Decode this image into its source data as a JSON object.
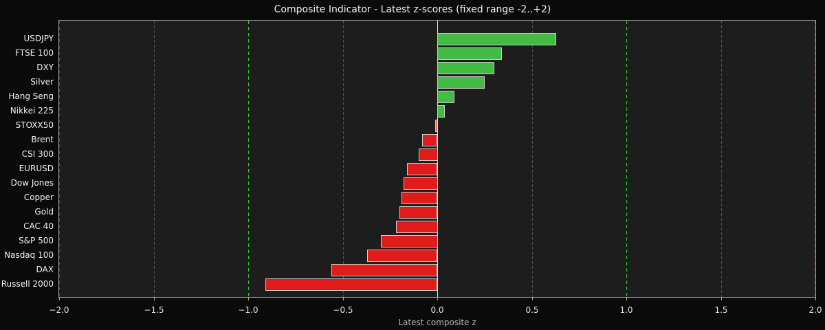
{
  "chart_data": {
    "type": "bar",
    "orientation": "horizontal",
    "title": "Composite Indicator - Latest z-scores (fixed range -2..+2)",
    "xlabel": "Latest composite z",
    "xlim": [
      -2.0,
      2.0
    ],
    "grid": true,
    "legend": false,
    "categories": [
      "USDJPY",
      "FTSE 100",
      "DXY",
      "Silver",
      "Hang Seng",
      "Nikkei 225",
      "STOXX50",
      "Brent",
      "CSI 300",
      "EURUSD",
      "Dow Jones",
      "Copper",
      "Gold",
      "CAC 40",
      "S&P 500",
      "Nasdaq 100",
      "DAX",
      "Russell 2000"
    ],
    "values": [
      0.63,
      0.34,
      0.3,
      0.25,
      0.09,
      0.04,
      -0.01,
      -0.08,
      -0.1,
      -0.16,
      -0.18,
      -0.19,
      -0.2,
      -0.22,
      -0.3,
      -0.37,
      -0.56,
      -0.91
    ],
    "xticks": [
      {
        "v": -2.0,
        "label": "−2.0"
      },
      {
        "v": -1.5,
        "label": "−1.5"
      },
      {
        "v": -1.0,
        "label": "−1.0"
      },
      {
        "v": -0.5,
        "label": "−0.5"
      },
      {
        "v": 0.0,
        "label": "0.0"
      },
      {
        "v": 0.5,
        "label": "0.5"
      },
      {
        "v": 1.0,
        "label": "1.0"
      },
      {
        "v": 1.5,
        "label": "1.5"
      },
      {
        "v": 2.0,
        "label": "2.0"
      }
    ],
    "gridlines_dashed_grey": [
      -1.5,
      -0.5,
      0.5,
      1.5
    ],
    "reference_lines_dashed_green": [
      -1.0,
      1.0
    ],
    "reference_lines_dashed_red": [
      -2.0,
      2.0
    ],
    "zero_line": 0.0,
    "colors": {
      "positive_bar": "#44bb44",
      "negative_bar": "#e11a1a",
      "bar_edge": "#cccccc",
      "grid_grey": "#555555",
      "ref_green": "#26cc26",
      "ref_red": "#a03030",
      "zero_line": "#e8e8e8",
      "figure_background": "#0a0a0a",
      "plot_background": "#1d1d1d",
      "spine": "#9a9a9a",
      "text": "#f0f0f0"
    }
  }
}
